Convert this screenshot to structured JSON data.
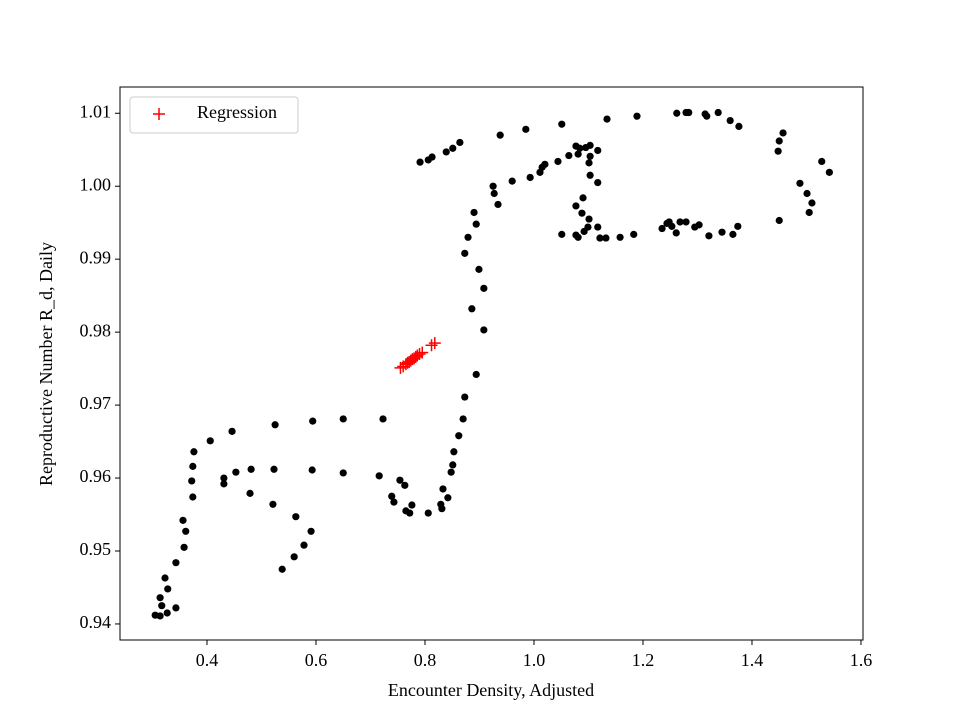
{
  "chart_data": {
    "type": "scatter",
    "xlabel": "Encounter Density, Adjusted",
    "ylabel": "Reproductive Number R_d, Daily",
    "xlim": [
      0.2404,
      1.6037
    ],
    "ylim": [
      0.9378,
      1.0136
    ],
    "xticks": [
      0.4,
      0.6,
      0.8,
      {
        "value": 1,
        "label": "1.0"
      },
      1.2,
      1.4,
      1.6
    ],
    "yticks": [
      0.94,
      0.95,
      0.96,
      0.97,
      0.98,
      0.99,
      {
        "value": 1,
        "label": "1.00"
      },
      1.01
    ],
    "legend": "upper left",
    "series": [
      {
        "color": "#000000",
        "marker": "dot",
        "x": [
          0.305,
          0.314,
          0.327,
          0.314,
          0.317,
          0.323,
          0.328,
          0.343,
          0.343,
          0.358,
          0.361,
          0.356,
          0.372,
          0.374,
          0.374,
          0.376,
          0.406,
          0.431,
          0.431,
          0.446,
          0.453,
          0.479,
          0.481,
          0.525,
          0.523,
          0.521,
          0.538,
          0.56,
          0.563,
          0.578,
          0.591,
          0.594,
          0.593,
          0.65,
          0.65,
          0.723,
          0.716,
          0.739,
          0.743,
          0.754,
          0.763,
          0.765,
          0.772,
          0.776,
          0.806,
          0.829,
          0.831,
          0.833,
          0.842,
          0.848,
          0.851,
          0.853,
          0.862,
          0.87,
          0.873,
          0.894,
          0.886,
          0.908,
          0.899,
          0.908,
          0.873,
          0.879,
          0.894,
          0.89,
          0.925,
          0.927,
          0.934,
          0.96,
          0.938,
          0.985,
          0.993,
          1.011,
          1.015,
          1.02,
          1.044,
          1.051,
          1.064,
          1.077,
          1.081,
          1.095,
          1.103,
          1.117,
          1.103,
          1.101,
          1.103,
          1.117,
          1.09,
          1.077,
          1.088,
          1.101,
          1.099,
          1.117,
          1.092,
          1.081,
          1.077,
          1.051,
          1.121,
          1.132,
          1.158,
          1.183,
          1.235,
          1.244,
          1.248,
          1.253,
          1.261,
          1.268,
          1.279,
          1.295,
          1.303,
          1.321,
          1.345,
          1.365,
          1.374,
          1.45,
          1.134,
          1.189,
          1.262,
          1.279,
          1.284,
          1.314,
          1.317,
          1.338,
          1.36,
          1.376,
          1.45,
          1.448,
          1.457,
          1.488,
          1.501,
          1.51,
          1.505,
          1.528,
          1.542,
          0.791,
          0.806,
          0.813,
          0.839,
          0.851,
          0.864,
          1.084
        ],
        "values": [
          0.9412,
          0.9411,
          0.9415,
          0.9436,
          0.9425,
          0.9463,
          0.9448,
          0.9422,
          0.9484,
          0.9505,
          0.9527,
          0.9542,
          0.9596,
          0.9574,
          0.9616,
          0.9636,
          0.9651,
          0.9592,
          0.96,
          0.9664,
          0.9608,
          0.9579,
          0.9612,
          0.9673,
          0.9612,
          0.9564,
          0.9475,
          0.9492,
          0.9547,
          0.9508,
          0.9527,
          0.9678,
          0.9611,
          0.9681,
          0.9607,
          0.9681,
          0.9603,
          0.9575,
          0.9567,
          0.9597,
          0.959,
          0.9555,
          0.9552,
          0.9563,
          0.9552,
          0.9564,
          0.9558,
          0.9585,
          0.9573,
          0.9608,
          0.9618,
          0.9636,
          0.9658,
          0.9681,
          0.9711,
          0.9742,
          0.9832,
          0.9803,
          0.9886,
          0.986,
          0.9908,
          0.993,
          0.9948,
          0.9964,
          1.0,
          0.999,
          0.9975,
          1.0007,
          1.007,
          1.0078,
          1.0012,
          1.0019,
          1.0026,
          1.003,
          1.0034,
          1.0085,
          1.0042,
          1.0055,
          1.0044,
          1.0053,
          1.0056,
          1.0049,
          1.0041,
          1.0032,
          1.0015,
          1.0005,
          0.9984,
          0.9973,
          0.9963,
          0.9955,
          0.9944,
          0.9944,
          0.9938,
          0.993,
          0.9933,
          0.9934,
          0.9929,
          0.9929,
          0.993,
          0.9934,
          0.9942,
          0.9949,
          0.9951,
          0.9945,
          0.9936,
          0.9951,
          0.9951,
          0.9944,
          0.9947,
          0.9932,
          0.9937,
          0.9934,
          0.9945,
          0.9953,
          1.0092,
          1.0096,
          1.01,
          1.0101,
          1.0101,
          1.0099,
          1.0096,
          1.0101,
          1.009,
          1.0082,
          1.0062,
          1.0048,
          1.0073,
          1.0004,
          0.999,
          0.9977,
          0.9964,
          1.0034,
          1.0019,
          1.0033,
          1.0036,
          1.004,
          1.0047,
          1.0052,
          1.006,
          1.0052
        ]
      },
      {
        "name": "Regression",
        "color": "#ff0000",
        "marker": "plus",
        "x": [
          0.755,
          0.76,
          0.765,
          0.768,
          0.771,
          0.774,
          0.777,
          0.78,
          0.783,
          0.786,
          0.79,
          0.795,
          0.812,
          0.818
        ],
        "values": [
          0.9751,
          0.9753,
          0.9756,
          0.9758,
          0.9759,
          0.9761,
          0.9763,
          0.9764,
          0.9766,
          0.9768,
          0.977,
          0.9772,
          0.9782,
          0.9785
        ]
      }
    ]
  }
}
